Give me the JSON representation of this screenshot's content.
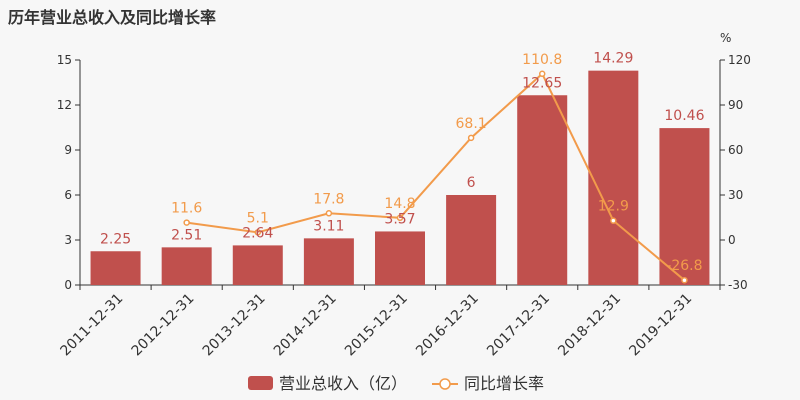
{
  "title": "历年营业总收入及同比增长率",
  "chart_data": {
    "type": "bar",
    "title": "历年营业总收入及同比增长率",
    "categories": [
      "2011-12-31",
      "2012-12-31",
      "2013-12-31",
      "2014-12-31",
      "2015-12-31",
      "2016-12-31",
      "2017-12-31",
      "2018-12-31",
      "2019-12-31"
    ],
    "series": [
      {
        "name": "营业总收入（亿）",
        "type": "bar",
        "axis": "left",
        "values": [
          2.25,
          2.51,
          2.64,
          3.11,
          3.57,
          6,
          12.65,
          14.29,
          10.46
        ],
        "labels": [
          "2.25",
          "2.51",
          "2.64",
          "3.11",
          "3.57",
          "6",
          "12.65",
          "14.29",
          "10.46"
        ],
        "color": "#c0504d"
      },
      {
        "name": "同比增长率",
        "type": "line",
        "axis": "right",
        "values": [
          null,
          11.6,
          5.1,
          17.8,
          14.8,
          68.1,
          110.8,
          12.9,
          -26.8
        ],
        "labels": [
          "",
          "11.6",
          "5.1",
          "17.8",
          "14.8",
          "68.1",
          "110.8",
          "12.9",
          "-26.8"
        ],
        "color": "#f29b4b"
      }
    ],
    "y_left": {
      "ylim": [
        0,
        15
      ],
      "ticks": [
        0,
        3,
        6,
        9,
        12,
        15
      ]
    },
    "y_right": {
      "ylabel": "%",
      "ylim": [
        -30,
        120
      ],
      "ticks": [
        -30,
        0,
        30,
        60,
        90,
        120
      ]
    },
    "legend": {
      "position": "bottom-center"
    },
    "grid": false
  }
}
